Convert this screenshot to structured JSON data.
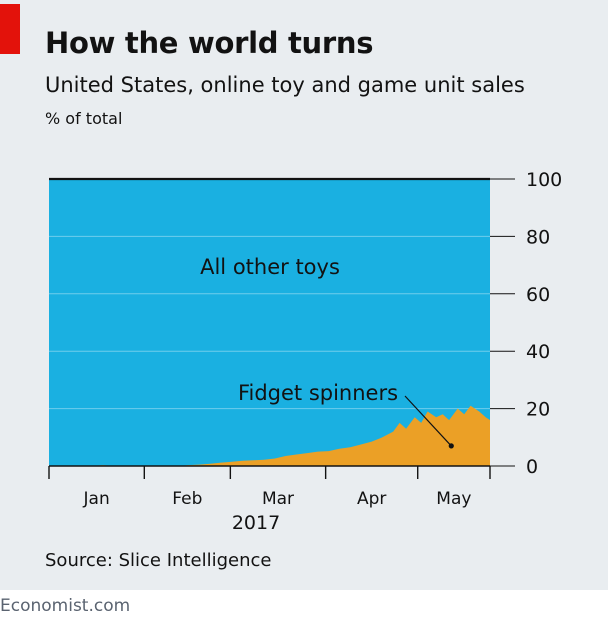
{
  "brand": {
    "name": "Economist.com",
    "accent_color": "#e3120b",
    "panel_color": "#e9edf0",
    "blue_color": "#1ab0e1",
    "orange_color": "#eba026"
  },
  "chart_data": {
    "type": "area",
    "title": "How the world turns",
    "subtitle": "United States, online toy and game unit sales",
    "ylabel": "% of total",
    "ylim": [
      0,
      100
    ],
    "yticks": [
      "0",
      "20",
      "40",
      "60",
      "80",
      "100"
    ],
    "yaxis_side": "right",
    "grid": true,
    "xlabel": "2017",
    "xlim_weeks": [
      0,
      20.5
    ],
    "months": [
      {
        "label": "Jan",
        "start": 0,
        "end": 4.43
      },
      {
        "label": "Feb",
        "start": 4.43,
        "end": 8.43
      },
      {
        "label": "Mar",
        "start": 8.43,
        "end": 12.86
      },
      {
        "label": "Apr",
        "start": 12.86,
        "end": 17.14
      },
      {
        "label": "May",
        "start": 17.14,
        "end": 20.5
      }
    ],
    "series": [
      {
        "name": "Fidget spinners",
        "x": [
          0,
          1,
          2,
          2.5,
          3,
          4,
          5,
          6,
          6.5,
          7,
          7.5,
          8,
          8.5,
          9,
          9.5,
          10,
          10.5,
          11,
          11.5,
          12,
          12.5,
          13,
          13.5,
          14,
          14.5,
          15,
          15.5,
          16,
          16.3,
          16.6,
          17,
          17.3,
          17.6,
          18,
          18.3,
          18.6,
          19,
          19.3,
          19.6,
          20,
          20.3,
          20.5
        ],
        "values": [
          0,
          0,
          0,
          0.3,
          0,
          0,
          0,
          0,
          0.3,
          0.5,
          0.8,
          1.2,
          1.5,
          1.8,
          2,
          2.2,
          2.6,
          3.5,
          4,
          4.5,
          5,
          5.2,
          6,
          6.5,
          7.5,
          8.5,
          10,
          12,
          15,
          13,
          17,
          15,
          19,
          17,
          18,
          16,
          20,
          18,
          21,
          19,
          17,
          16
        ]
      },
      {
        "name": "All other toys",
        "values": "remainder to 100"
      }
    ],
    "annotations": [
      {
        "text": "All other toys",
        "series": "All other toys"
      },
      {
        "text": "Fidget spinners",
        "series": "Fidget spinners",
        "pointer_x": 18.7,
        "pointer_y": 7
      }
    ]
  },
  "source": "Source: Slice Intelligence",
  "credit": "Economist.com"
}
